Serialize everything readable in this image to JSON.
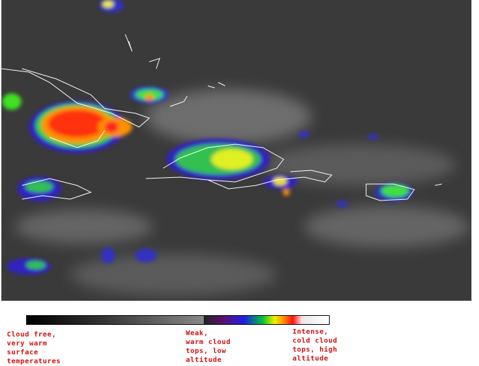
{
  "image": {
    "kind": "enhanced infrared satellite image",
    "region": "Greater Antilles / Caribbean"
  },
  "legend": {
    "colors": [
      "#000000",
      "#888888",
      "#5a1070",
      "#2020e0",
      "#00c040",
      "#f0f000",
      "#ff9000",
      "#ff1010",
      "#ffffff"
    ],
    "labels": {
      "warm": "Cloud free,\nvery warm\nsurface\ntemperatures",
      "weak": "Weak,\nwarm cloud\ntops, low\naltitude",
      "intense": "Intense,\ncold cloud\ntops, high\naltitude"
    }
  }
}
